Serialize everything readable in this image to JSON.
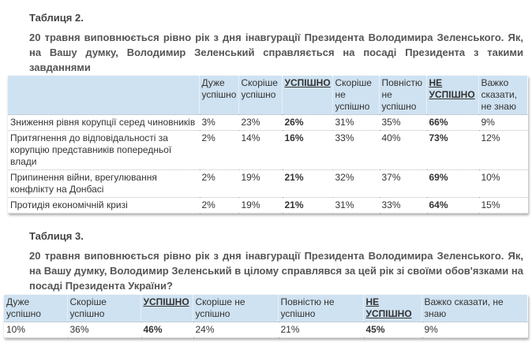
{
  "table2": {
    "caption": "Таблиця 2.",
    "question": "20 травня виповнюється рівно рік з дня інавгурації Президента Володимира Зеленського. Як, на Вашу думку, Володимир Зеленський справляється на посаді Президента з такими завданнями",
    "headers": [
      "",
      "Дуже успішно",
      "Скоріше успішно",
      "УСПІШНО",
      "Скоріше не успішно",
      "Повністю не успішно",
      "НЕ УСПІШНО",
      "Важко сказати, не знаю"
    ],
    "rows": [
      [
        "Зниження рівня корупції серед чиновників",
        "3%",
        "23%",
        "26%",
        "31%",
        "35%",
        "66%",
        "9%"
      ],
      [
        "Притягнення до відповідальності за корупцію представників попередньої влади",
        "2%",
        "14%",
        "16%",
        "33%",
        "40%",
        "73%",
        "12%"
      ],
      [
        "Припинення війни, врегулювання конфлікту на Донбасі",
        "2%",
        "19%",
        "21%",
        "32%",
        "37%",
        "69%",
        "10%"
      ],
      [
        "Протидія економічній кризі",
        "2%",
        "19%",
        "21%",
        "31%",
        "33%",
        "64%",
        "15%"
      ]
    ]
  },
  "table3": {
    "caption": "Таблиця 3.",
    "question": "20 травня виповнюється рівно рік з дня інавгурації Президента Володимира Зеленського. Як, на Вашу думку, Володимир Зеленський в цілому справлявся за цей рік зі своїми обов'язками на посаді Президента України?",
    "headers": [
      "Дуже успішно",
      "Скоріше успішно",
      "УСПІШНО",
      "Скоріше не успішно",
      "Повністю не успішно",
      "НЕ УСПІШНО",
      "Важко сказати, не знаю"
    ],
    "values": [
      "10%",
      "36%",
      "46%",
      "24%",
      "21%",
      "45%",
      "9%"
    ]
  },
  "colors": {
    "header_bg": "#cfe2f1"
  }
}
